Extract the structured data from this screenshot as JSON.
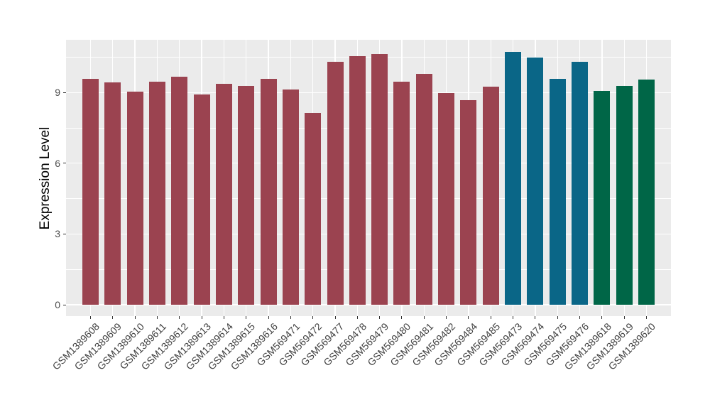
{
  "chart_data": {
    "type": "bar",
    "title": "",
    "xlabel": "",
    "ylabel": "Expression Level",
    "categories": [
      "GSM1389608",
      "GSM1389609",
      "GSM1389610",
      "GSM1389611",
      "GSM1389612",
      "GSM1389613",
      "GSM1389614",
      "GSM1389615",
      "GSM1389616",
      "GSM569471",
      "GSM569472",
      "GSM569477",
      "GSM569478",
      "GSM569479",
      "GSM569480",
      "GSM569481",
      "GSM569482",
      "GSM569484",
      "GSM569485",
      "GSM569473",
      "GSM569474",
      "GSM569475",
      "GSM569476",
      "GSM1389618",
      "GSM1389619",
      "GSM1389620"
    ],
    "values": [
      9.58,
      9.44,
      9.05,
      9.47,
      9.67,
      8.92,
      9.38,
      9.28,
      9.58,
      9.12,
      8.13,
      10.29,
      10.53,
      10.63,
      9.45,
      9.8,
      8.98,
      8.68,
      9.25,
      10.71,
      10.48,
      9.58,
      10.31,
      9.08,
      9.28,
      9.55
    ],
    "bar_groups": [
      "group1",
      "group1",
      "group1",
      "group1",
      "group1",
      "group1",
      "group1",
      "group1",
      "group1",
      "group1",
      "group1",
      "group1",
      "group1",
      "group1",
      "group1",
      "group1",
      "group1",
      "group1",
      "group1",
      "group2",
      "group2",
      "group2",
      "group2",
      "group3",
      "group3",
      "group3"
    ],
    "group_colors": {
      "group1": "#9B4350",
      "group2": "#0A6687",
      "group3": "#006647"
    },
    "ylim": [
      0,
      11.23
    ],
    "yticks": [
      "0",
      "3",
      "6",
      "9"
    ],
    "ytick_values": [
      0,
      3,
      6,
      9
    ],
    "minor_gridline_values": [
      1.5,
      4.5,
      7.5,
      10.5
    ],
    "grid": "on",
    "legend_position": "none",
    "panel_background": "#EBEBEB",
    "gridline_color": "#FFFFFF"
  }
}
